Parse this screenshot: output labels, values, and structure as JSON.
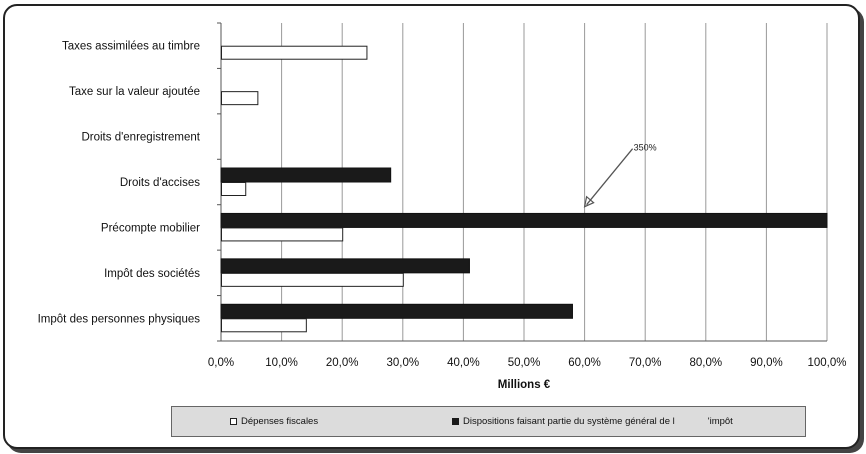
{
  "chart_data": {
    "type": "bar",
    "orientation": "horizontal",
    "categories": [
      "Taxes assimilées au timbre",
      "Taxe sur la valeur ajoutée",
      "Droits d'enregistrement",
      "Droits d'accises",
      "Précompte mobilier",
      "Impôt des sociétés",
      "Impôt des personnes physiques"
    ],
    "series": [
      {
        "name": "Dépenses fiscales",
        "values": [
          24,
          6,
          0,
          4,
          20,
          30,
          14
        ],
        "color": "#ffffff"
      },
      {
        "name": "Dispositions faisant partie du système général de l'impôt",
        "values": [
          0,
          0,
          0,
          28,
          100,
          41,
          58
        ],
        "color": "#1a1a1a"
      }
    ],
    "xlabel": "Millions €",
    "xlim": [
      0,
      100
    ],
    "xticks": [
      "0,0%",
      "10,0%",
      "20,0%",
      "30,0%",
      "40,0%",
      "50,0%",
      "60,0%",
      "70,0%",
      "80,0%",
      "90,0%",
      "100,0%"
    ],
    "grid": true,
    "legend_position": "bottom",
    "annotations": [
      {
        "text": "350%",
        "points_to_value": 60,
        "points_to_category": "Précompte mobilier"
      }
    ]
  },
  "legend": {
    "item1_label": "Dépenses fiscales",
    "item2_label": "Dispositions faisant partie du système général de l",
    "item2_suffix": "'impôt"
  }
}
